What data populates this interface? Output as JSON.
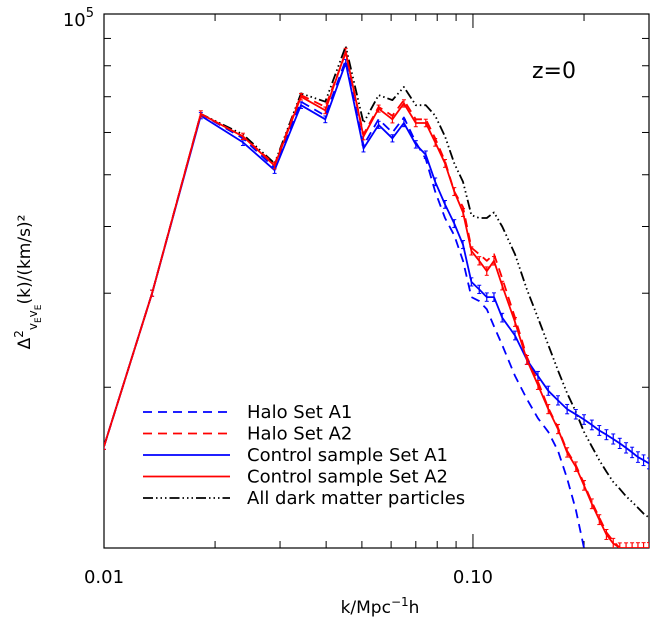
{
  "chart_data": {
    "type": "line",
    "annotation": "z=0",
    "xlabel_parts": {
      "main": "k/Mpc",
      "sup": "−1",
      "tail": "h"
    },
    "ylabel_parts": {
      "delta": "Δ",
      "two": "2",
      "sub": "v",
      "subsub": "E",
      "rest": "(k)/(km/s)²"
    },
    "x_scale": "log",
    "y_scale": "log",
    "xlim": [
      0.01,
      0.3
    ],
    "ylim": [
      10000,
      100000
    ],
    "x_ticks": [
      {
        "value": 0.01,
        "label": "0.01"
      },
      {
        "value": 0.1,
        "label": "0.10"
      }
    ],
    "y_ticks": [
      {
        "value": 100000,
        "base": "10",
        "exp": "5"
      }
    ],
    "legend_position": "bottom-left",
    "series": [
      {
        "name": "Halo Set A1",
        "color": "#0000ff",
        "dash": "dashed",
        "errorbars": false,
        "x": [
          0.01,
          0.0135,
          0.0183,
          0.0238,
          0.029,
          0.0342,
          0.0398,
          0.0452,
          0.0505,
          0.0555,
          0.0605,
          0.065,
          0.07,
          0.0745,
          0.079,
          0.084,
          0.089,
          0.094,
          0.099,
          0.104,
          0.109,
          0.114,
          0.12,
          0.13,
          0.14,
          0.15,
          0.16,
          0.17,
          0.18,
          0.19,
          0.2
        ],
        "y": [
          15500,
          30000,
          65000,
          58500,
          51500,
          68500,
          64500,
          82000,
          56800,
          63500,
          60000,
          64000,
          57500,
          53500,
          46500,
          41500,
          38500,
          34500,
          29500,
          29000,
          28000,
          26000,
          24000,
          21000,
          19000,
          17500,
          16500,
          15200,
          13500,
          11800,
          10000
        ]
      },
      {
        "name": "Halo Set A2",
        "color": "#ff0000",
        "dash": "dashed",
        "errorbars": false,
        "x": [
          0.01,
          0.0135,
          0.0183,
          0.0238,
          0.029,
          0.0342,
          0.0398,
          0.0452,
          0.0505,
          0.0555,
          0.0605,
          0.065,
          0.07,
          0.0745,
          0.079,
          0.084,
          0.089,
          0.094,
          0.099,
          0.104,
          0.109,
          0.114,
          0.12,
          0.13,
          0.14,
          0.15,
          0.16,
          0.17,
          0.18,
          0.19,
          0.2,
          0.21,
          0.22,
          0.23,
          0.24,
          0.25
        ],
        "y": [
          15500,
          30000,
          65000,
          59000,
          52300,
          70500,
          67000,
          84500,
          59500,
          67000,
          64500,
          69000,
          63500,
          63500,
          58500,
          53000,
          46500,
          43500,
          36500,
          35500,
          34500,
          35500,
          32000,
          27000,
          22800,
          20500,
          18300,
          16800,
          15200,
          14300,
          13200,
          12200,
          11400,
          10700,
          10300,
          10000
        ]
      },
      {
        "name": "Control sample Set A1",
        "color": "#0000ff",
        "dash": "solid",
        "errorbars": true,
        "x": [
          0.01,
          0.0135,
          0.0183,
          0.0238,
          0.029,
          0.0342,
          0.0398,
          0.0452,
          0.0505,
          0.0555,
          0.0605,
          0.065,
          0.07,
          0.0745,
          0.079,
          0.084,
          0.089,
          0.094,
          0.099,
          0.104,
          0.109,
          0.114,
          0.12,
          0.13,
          0.14,
          0.15,
          0.16,
          0.17,
          0.18,
          0.19,
          0.2,
          0.21,
          0.22,
          0.23,
          0.24,
          0.25,
          0.26,
          0.27,
          0.28,
          0.29,
          0.3
        ],
        "y": [
          15500,
          30000,
          64500,
          57500,
          51000,
          67500,
          63500,
          81000,
          56000,
          62000,
          58500,
          62500,
          57000,
          54500,
          48500,
          44000,
          40500,
          37000,
          31500,
          30500,
          29500,
          29500,
          27000,
          25000,
          22500,
          21000,
          19700,
          18900,
          18200,
          17800,
          17400,
          17000,
          16600,
          16300,
          16000,
          15700,
          15400,
          15100,
          14800,
          14600,
          14400
        ]
      },
      {
        "name": "Control sample Set A2",
        "color": "#ff0000",
        "dash": "solid",
        "errorbars": true,
        "x": [
          0.01,
          0.0135,
          0.0183,
          0.0238,
          0.029,
          0.0342,
          0.0398,
          0.0452,
          0.0505,
          0.0555,
          0.0605,
          0.065,
          0.07,
          0.0745,
          0.079,
          0.084,
          0.089,
          0.094,
          0.099,
          0.104,
          0.109,
          0.114,
          0.12,
          0.13,
          0.14,
          0.15,
          0.16,
          0.17,
          0.18,
          0.19,
          0.2,
          0.21,
          0.22,
          0.23,
          0.24,
          0.25,
          0.26,
          0.27,
          0.28,
          0.29,
          0.3
        ],
        "y": [
          15500,
          30000,
          65000,
          59000,
          52000,
          70000,
          66000,
          85000,
          59000,
          66500,
          63500,
          68000,
          62500,
          62500,
          57500,
          52500,
          46500,
          42500,
          36000,
          34500,
          33000,
          34500,
          31000,
          26500,
          22500,
          20200,
          18200,
          16700,
          15100,
          14200,
          13100,
          12100,
          11300,
          10600,
          10200,
          10000,
          10000,
          10000,
          10000,
          10000,
          10000
        ]
      },
      {
        "name": "All dark matter particles",
        "color": "#000000",
        "dash": "dash-dot-dot-dot",
        "errorbars": false,
        "x": [
          0.01,
          0.0135,
          0.0183,
          0.0238,
          0.029,
          0.0342,
          0.0398,
          0.0452,
          0.0505,
          0.0555,
          0.0605,
          0.065,
          0.07,
          0.0745,
          0.079,
          0.084,
          0.089,
          0.094,
          0.099,
          0.104,
          0.109,
          0.114,
          0.12,
          0.13,
          0.14,
          0.15,
          0.16,
          0.17,
          0.18,
          0.19,
          0.2,
          0.21,
          0.22,
          0.23,
          0.24,
          0.25,
          0.26,
          0.27,
          0.28,
          0.29,
          0.3
        ],
        "y": [
          15500,
          30000,
          65000,
          59500,
          52500,
          71000,
          68500,
          87000,
          62500,
          70500,
          69000,
          73000,
          67500,
          67500,
          64500,
          59000,
          52500,
          48500,
          42000,
          41500,
          41500,
          42500,
          40000,
          35500,
          30500,
          27000,
          24000,
          21500,
          19500,
          18000,
          16500,
          15500,
          14600,
          13900,
          13300,
          12900,
          12500,
          12200,
          11900,
          11600,
          11400
        ]
      }
    ]
  }
}
